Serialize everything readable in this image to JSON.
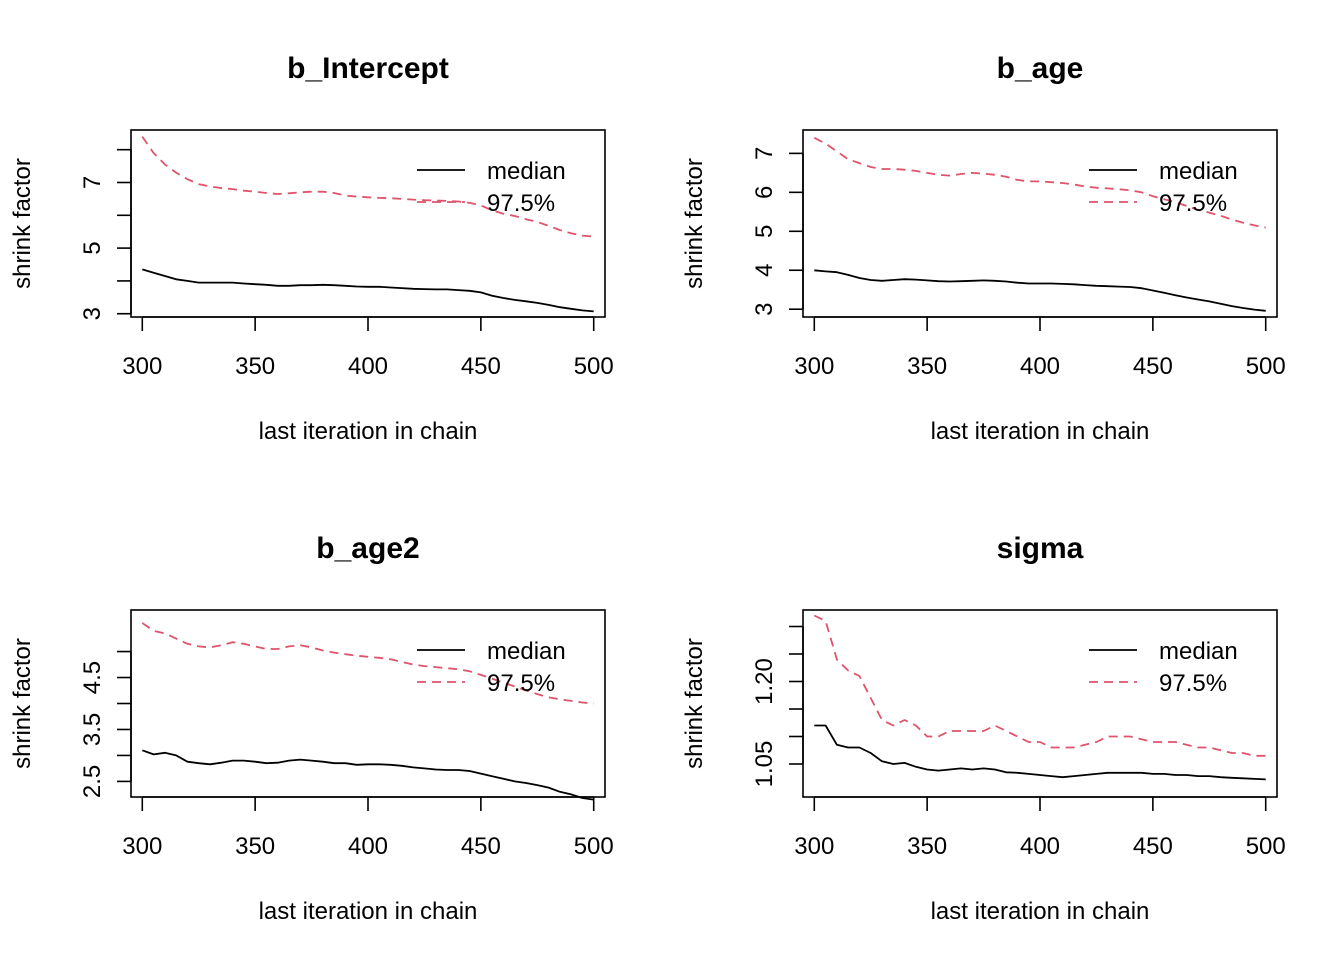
{
  "chart_data": [
    {
      "type": "line",
      "title": "b_Intercept",
      "xlabel": "last iteration in chain",
      "ylabel": "shrink factor",
      "xlim": [
        295,
        505
      ],
      "ylim": [
        2.9,
        8.6
      ],
      "xticks": [
        300,
        350,
        400,
        450,
        500
      ],
      "xtick_labels": [
        "300",
        "350",
        "400",
        "450",
        "500"
      ],
      "yticks": [
        3,
        4,
        5,
        6,
        7,
        8
      ],
      "ytick_labels": [
        "3",
        "",
        "5",
        "",
        "7",
        ""
      ],
      "legend": {
        "position": "top-right",
        "entries": [
          "median",
          "97.5%"
        ]
      },
      "x": [
        300,
        305,
        310,
        315,
        320,
        325,
        330,
        335,
        340,
        345,
        350,
        355,
        360,
        365,
        370,
        375,
        380,
        385,
        390,
        395,
        400,
        405,
        410,
        415,
        420,
        425,
        430,
        435,
        440,
        445,
        450,
        455,
        460,
        465,
        470,
        475,
        480,
        485,
        490,
        495,
        500
      ],
      "series": [
        {
          "name": "median",
          "color": "#000000",
          "dash": "solid",
          "values": [
            4.35,
            4.25,
            4.15,
            4.05,
            4.0,
            3.95,
            3.95,
            3.95,
            3.95,
            3.92,
            3.9,
            3.88,
            3.85,
            3.85,
            3.87,
            3.87,
            3.88,
            3.87,
            3.85,
            3.83,
            3.82,
            3.82,
            3.8,
            3.78,
            3.76,
            3.75,
            3.74,
            3.74,
            3.72,
            3.7,
            3.65,
            3.55,
            3.48,
            3.42,
            3.38,
            3.33,
            3.27,
            3.2,
            3.15,
            3.1,
            3.07
          ]
        },
        {
          "name": "97.5%",
          "color": "#DF536B",
          "dash": "dashed",
          "values": [
            8.4,
            7.9,
            7.55,
            7.3,
            7.1,
            6.95,
            6.88,
            6.83,
            6.8,
            6.75,
            6.72,
            6.68,
            6.65,
            6.67,
            6.7,
            6.72,
            6.72,
            6.68,
            6.6,
            6.57,
            6.55,
            6.53,
            6.52,
            6.5,
            6.48,
            6.46,
            6.45,
            6.44,
            6.42,
            6.38,
            6.3,
            6.15,
            6.05,
            5.98,
            5.88,
            5.8,
            5.68,
            5.55,
            5.45,
            5.38,
            5.35
          ]
        }
      ]
    },
    {
      "type": "line",
      "title": "b_age",
      "xlabel": "last iteration in chain",
      "ylabel": "shrink factor",
      "xlim": [
        295,
        505
      ],
      "ylim": [
        2.8,
        7.6
      ],
      "xticks": [
        300,
        350,
        400,
        450,
        500
      ],
      "xtick_labels": [
        "300",
        "350",
        "400",
        "450",
        "500"
      ],
      "yticks": [
        3,
        4,
        5,
        6,
        7
      ],
      "ytick_labels": [
        "3",
        "4",
        "5",
        "6",
        "7"
      ],
      "legend": {
        "position": "top-right",
        "entries": [
          "median",
          "97.5%"
        ]
      },
      "x": [
        300,
        305,
        310,
        315,
        320,
        325,
        330,
        335,
        340,
        345,
        350,
        355,
        360,
        365,
        370,
        375,
        380,
        385,
        390,
        395,
        400,
        405,
        410,
        415,
        420,
        425,
        430,
        435,
        440,
        445,
        450,
        455,
        460,
        465,
        470,
        475,
        480,
        485,
        490,
        495,
        500
      ],
      "series": [
        {
          "name": "median",
          "color": "#000000",
          "dash": "solid",
          "values": [
            4.0,
            3.97,
            3.95,
            3.88,
            3.8,
            3.75,
            3.73,
            3.75,
            3.77,
            3.76,
            3.74,
            3.72,
            3.71,
            3.72,
            3.73,
            3.74,
            3.73,
            3.71,
            3.68,
            3.66,
            3.66,
            3.66,
            3.65,
            3.64,
            3.62,
            3.6,
            3.59,
            3.58,
            3.57,
            3.54,
            3.48,
            3.42,
            3.36,
            3.3,
            3.25,
            3.2,
            3.14,
            3.08,
            3.03,
            2.99,
            2.96
          ]
        },
        {
          "name": "97.5%",
          "color": "#DF536B",
          "dash": "dashed",
          "values": [
            7.4,
            7.25,
            7.05,
            6.85,
            6.75,
            6.65,
            6.6,
            6.6,
            6.58,
            6.55,
            6.5,
            6.45,
            6.43,
            6.47,
            6.5,
            6.48,
            6.45,
            6.4,
            6.32,
            6.28,
            6.28,
            6.26,
            6.24,
            6.2,
            6.15,
            6.12,
            6.1,
            6.08,
            6.05,
            6.0,
            5.9,
            5.82,
            5.75,
            5.65,
            5.55,
            5.48,
            5.4,
            5.3,
            5.22,
            5.15,
            5.1
          ]
        }
      ]
    },
    {
      "type": "line",
      "title": "b_age2",
      "xlabel": "last iteration in chain",
      "ylabel": "shrink factor",
      "xlim": [
        295,
        505
      ],
      "ylim": [
        2.2,
        5.8
      ],
      "xticks": [
        300,
        350,
        400,
        450,
        500
      ],
      "xtick_labels": [
        "300",
        "350",
        "400",
        "450",
        "500"
      ],
      "yticks": [
        2.5,
        3.0,
        3.5,
        4.0,
        4.5,
        5.0
      ],
      "ytick_labels": [
        "2.5",
        "",
        "3.5",
        "",
        "4.5",
        ""
      ],
      "legend": {
        "position": "top-right",
        "entries": [
          "median",
          "97.5%"
        ]
      },
      "x": [
        300,
        305,
        310,
        315,
        320,
        325,
        330,
        335,
        340,
        345,
        350,
        355,
        360,
        365,
        370,
        375,
        380,
        385,
        390,
        395,
        400,
        405,
        410,
        415,
        420,
        425,
        430,
        435,
        440,
        445,
        450,
        455,
        460,
        465,
        470,
        475,
        480,
        485,
        490,
        495,
        500
      ],
      "series": [
        {
          "name": "median",
          "color": "#000000",
          "dash": "solid",
          "values": [
            3.1,
            3.02,
            3.05,
            3.0,
            2.88,
            2.85,
            2.83,
            2.86,
            2.9,
            2.9,
            2.88,
            2.85,
            2.86,
            2.9,
            2.92,
            2.9,
            2.88,
            2.85,
            2.85,
            2.82,
            2.83,
            2.83,
            2.82,
            2.8,
            2.77,
            2.75,
            2.73,
            2.72,
            2.72,
            2.7,
            2.65,
            2.6,
            2.55,
            2.5,
            2.47,
            2.43,
            2.38,
            2.3,
            2.25,
            2.18,
            2.15
          ]
        },
        {
          "name": "97.5%",
          "color": "#DF536B",
          "dash": "dashed",
          "values": [
            5.55,
            5.4,
            5.35,
            5.25,
            5.15,
            5.1,
            5.08,
            5.12,
            5.18,
            5.15,
            5.1,
            5.05,
            5.05,
            5.1,
            5.12,
            5.08,
            5.02,
            4.98,
            4.95,
            4.92,
            4.9,
            4.88,
            4.85,
            4.8,
            4.75,
            4.72,
            4.7,
            4.68,
            4.66,
            4.62,
            4.55,
            4.48,
            4.4,
            4.33,
            4.25,
            4.18,
            4.12,
            4.08,
            4.05,
            4.02,
            4.0
          ]
        }
      ]
    },
    {
      "type": "line",
      "title": "sigma",
      "xlabel": "last iteration in chain",
      "ylabel": "shrink factor",
      "xlim": [
        295,
        505
      ],
      "ylim": [
        0.99,
        1.33
      ],
      "xticks": [
        300,
        350,
        400,
        450,
        500
      ],
      "xtick_labels": [
        "300",
        "350",
        "400",
        "450",
        "500"
      ],
      "yticks": [
        1.05,
        1.1,
        1.15,
        1.2,
        1.25,
        1.3
      ],
      "ytick_labels": [
        "1.05",
        "",
        "",
        "1.20",
        "",
        ""
      ],
      "legend": {
        "position": "top-right",
        "entries": [
          "median",
          "97.5%"
        ]
      },
      "x": [
        300,
        305,
        310,
        315,
        320,
        325,
        330,
        335,
        340,
        345,
        350,
        355,
        360,
        365,
        370,
        375,
        380,
        385,
        390,
        395,
        400,
        405,
        410,
        415,
        420,
        425,
        430,
        435,
        440,
        445,
        450,
        455,
        460,
        465,
        470,
        475,
        480,
        485,
        490,
        495,
        500
      ],
      "series": [
        {
          "name": "median",
          "color": "#000000",
          "dash": "solid",
          "values": [
            1.12,
            1.12,
            1.085,
            1.08,
            1.08,
            1.07,
            1.055,
            1.05,
            1.052,
            1.045,
            1.04,
            1.038,
            1.04,
            1.042,
            1.04,
            1.042,
            1.04,
            1.035,
            1.034,
            1.032,
            1.03,
            1.028,
            1.026,
            1.028,
            1.03,
            1.032,
            1.034,
            1.034,
            1.034,
            1.034,
            1.032,
            1.032,
            1.03,
            1.03,
            1.028,
            1.028,
            1.026,
            1.025,
            1.024,
            1.023,
            1.022
          ]
        },
        {
          "name": "97.5%",
          "color": "#DF536B",
          "dash": "dashed",
          "values": [
            1.32,
            1.31,
            1.24,
            1.22,
            1.21,
            1.17,
            1.13,
            1.12,
            1.13,
            1.12,
            1.1,
            1.1,
            1.11,
            1.11,
            1.11,
            1.11,
            1.12,
            1.11,
            1.1,
            1.09,
            1.09,
            1.08,
            1.08,
            1.08,
            1.085,
            1.09,
            1.1,
            1.1,
            1.1,
            1.095,
            1.09,
            1.09,
            1.09,
            1.085,
            1.08,
            1.08,
            1.075,
            1.07,
            1.07,
            1.065,
            1.065
          ]
        }
      ]
    }
  ]
}
